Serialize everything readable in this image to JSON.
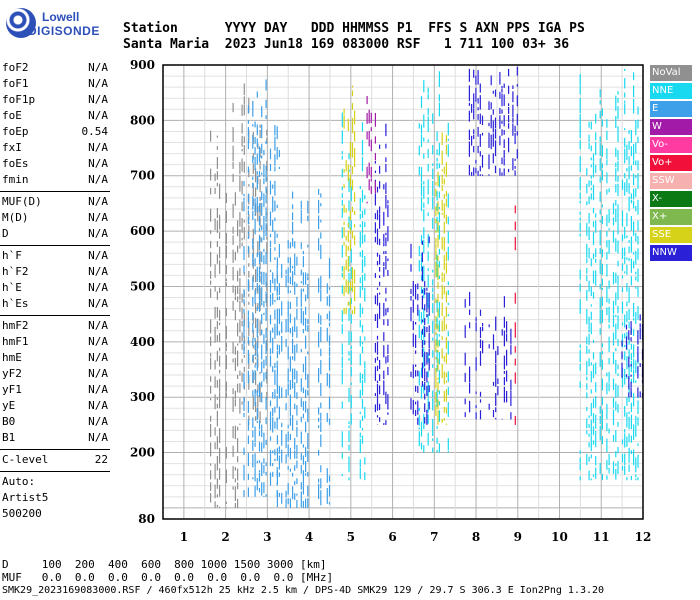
{
  "logo": {
    "line1": "Lowell",
    "line2": "DIGISONDE"
  },
  "header": {
    "line1": "Station      YYYY DAY   DDD HHMMSS P1  FFS S AXN PPS IGA PS",
    "line2": "Santa Maria  2023 Jun18 169 083000 RSF   1 711 100 03+ 36"
  },
  "params_group1": [
    {
      "name": "foF2",
      "value": "N/A"
    },
    {
      "name": "foF1",
      "value": "N/A"
    },
    {
      "name": "foF1p",
      "value": "N/A"
    },
    {
      "name": "foE",
      "value": "N/A"
    },
    {
      "name": "foEp",
      "value": "0.54"
    },
    {
      "name": "fxI",
      "value": "N/A"
    },
    {
      "name": "foEs",
      "value": "N/A"
    },
    {
      "name": "fmin",
      "value": "N/A"
    }
  ],
  "params_group2": [
    {
      "name": "MUF(D)",
      "value": "N/A"
    },
    {
      "name": "M(D)",
      "value": "N/A"
    },
    {
      "name": "D",
      "value": "N/A"
    }
  ],
  "params_group3": [
    {
      "name": "h`F",
      "value": "N/A"
    },
    {
      "name": "h`F2",
      "value": "N/A"
    },
    {
      "name": "h`E",
      "value": "N/A"
    },
    {
      "name": "h`Es",
      "value": "N/A"
    }
  ],
  "params_group4": [
    {
      "name": "hmF2",
      "value": "N/A"
    },
    {
      "name": "hmF1",
      "value": "N/A"
    },
    {
      "name": "hmE",
      "value": "N/A"
    },
    {
      "name": "yF2",
      "value": "N/A"
    },
    {
      "name": "yF1",
      "value": "N/A"
    },
    {
      "name": "yE",
      "value": "N/A"
    },
    {
      "name": "B0",
      "value": "N/A"
    },
    {
      "name": "B1",
      "value": "N/A"
    }
  ],
  "params_group5": [
    {
      "name": "C-level",
      "value": "22"
    }
  ],
  "autoscaling": {
    "line1": "Auto:",
    "line2": "Artist5",
    "line3": "500200"
  },
  "legend": [
    {
      "label": "NoVal",
      "color": "#909090"
    },
    {
      "label": "NNE",
      "color": "#19d9f0"
    },
    {
      "label": "E",
      "color": "#3ea0e8"
    },
    {
      "label": "W",
      "color": "#a21aa8"
    },
    {
      "label": "Vo-",
      "color": "#ff3aa0"
    },
    {
      "label": "Vo+",
      "color": "#f0103a"
    },
    {
      "label": "SSW",
      "color": "#f7b0b0"
    },
    {
      "label": "X-",
      "color": "#0b7a14"
    },
    {
      "label": "X+",
      "color": "#80b850"
    },
    {
      "label": "SSE",
      "color": "#d6d21a"
    },
    {
      "label": "NNW",
      "color": "#2a20d8"
    }
  ],
  "footer": {
    "line1": "D     100  200  400  600  800 1000 1500 3000 [km]",
    "line2": "MUF   0.0  0.0  0.0  0.0  0.0  0.0  0.0  0.0 [MHz]",
    "line3": "SMK29_2023169083000.RSF / 460fx512h 25 kHz 2.5 km / DPS-4D SMK29 129 / 29.7 S 306.3 E Ion2Png 1.3.20"
  },
  "chart_data": {
    "type": "scatter",
    "title": "",
    "xlabel": "",
    "ylabel": "",
    "xlim": [
      0.5,
      12
    ],
    "ylim": [
      80,
      900
    ],
    "x_ticks": [
      1,
      2,
      3,
      4,
      5,
      6,
      7,
      8,
      9,
      10,
      11,
      12
    ],
    "y_ticks": [
      80,
      200,
      300,
      400,
      500,
      600,
      700,
      800,
      900
    ],
    "grid": true,
    "echo_bands": [
      {
        "series": "NoVal",
        "freq_range": [
          1.6,
          2.3
        ],
        "height_range": [
          100,
          850
        ]
      },
      {
        "series": "NoVal",
        "freq_range": [
          2.3,
          3.0
        ],
        "height_range": [
          250,
          900
        ]
      },
      {
        "series": "E",
        "freq_range": [
          2.4,
          3.3
        ],
        "height_range": [
          120,
          880
        ]
      },
      {
        "series": "E",
        "freq_range": [
          3.2,
          4.5
        ],
        "height_range": [
          100,
          700
        ]
      },
      {
        "series": "NNE",
        "freq_range": [
          4.7,
          5.4
        ],
        "height_range": [
          150,
          850
        ]
      },
      {
        "series": "SSE",
        "freq_range": [
          4.8,
          5.2
        ],
        "height_range": [
          450,
          870
        ]
      },
      {
        "series": "NNW",
        "freq_range": [
          5.5,
          5.9
        ],
        "height_range": [
          250,
          800
        ]
      },
      {
        "series": "W",
        "freq_range": [
          5.3,
          5.6
        ],
        "height_range": [
          650,
          870
        ]
      },
      {
        "series": "NNE",
        "freq_range": [
          6.6,
          7.4
        ],
        "height_range": [
          200,
          900
        ]
      },
      {
        "series": "NNW",
        "freq_range": [
          6.4,
          7.0
        ],
        "height_range": [
          250,
          600
        ]
      },
      {
        "series": "SSE",
        "freq_range": [
          7.0,
          7.3
        ],
        "height_range": [
          250,
          880
        ]
      },
      {
        "series": "NNW",
        "freq_range": [
          7.7,
          8.9
        ],
        "height_range": [
          260,
          500
        ]
      },
      {
        "series": "NNW",
        "freq_range": [
          7.8,
          9.0
        ],
        "height_range": [
          700,
          900
        ]
      },
      {
        "series": "Vo+",
        "freq_range": [
          8.8,
          9.0
        ],
        "height_range": [
          250,
          900
        ]
      },
      {
        "series": "NNE",
        "freq_range": [
          10.4,
          12.0
        ],
        "height_range": [
          150,
          900
        ]
      },
      {
        "series": "NNW",
        "freq_range": [
          11.4,
          12.0
        ],
        "height_range": [
          300,
          450
        ]
      }
    ]
  }
}
